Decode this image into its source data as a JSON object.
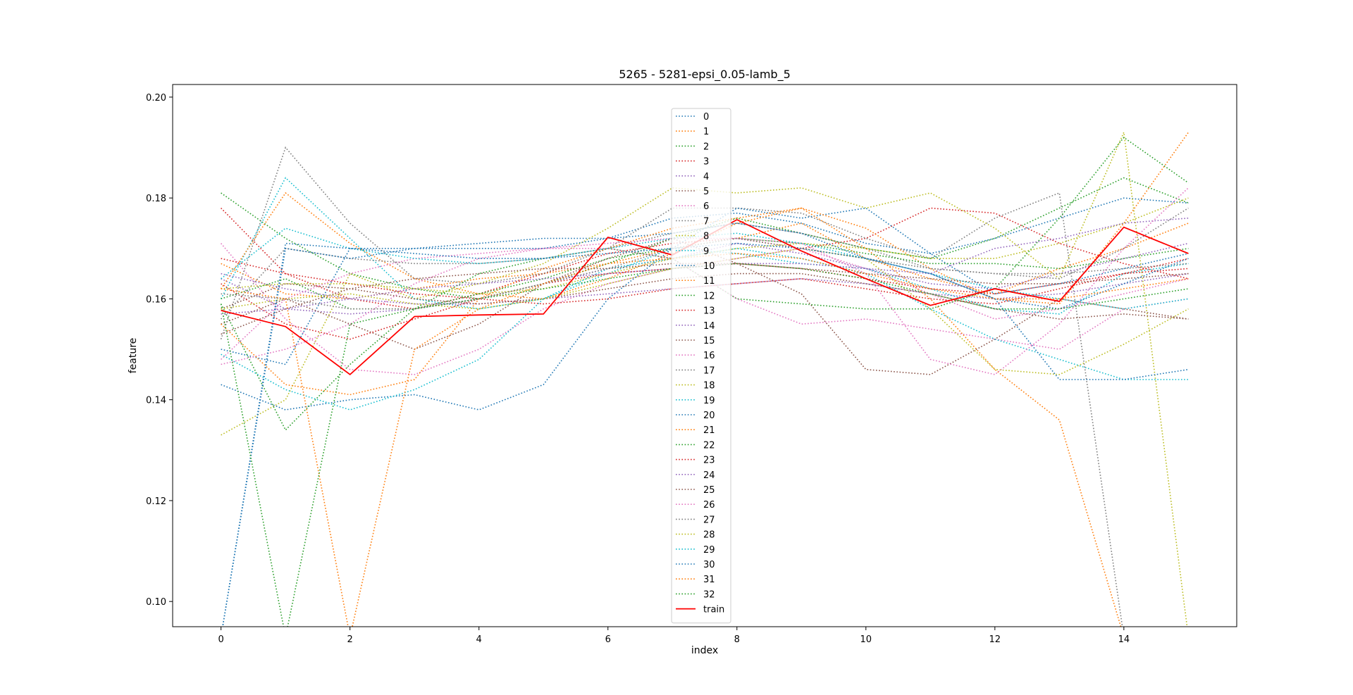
{
  "chart_data": {
    "type": "line",
    "title": "5265 - 5281-epsi_0.05-lamb_5",
    "xlabel": "index",
    "ylabel": "feature",
    "xlim": [
      -0.75,
      15.75
    ],
    "ylim": [
      0.095,
      0.2025
    ],
    "xticks": [
      "0",
      "2",
      "4",
      "6",
      "8",
      "10",
      "12",
      "14"
    ],
    "xtick_values": [
      0,
      2,
      4,
      6,
      8,
      10,
      12,
      14
    ],
    "yticks": [
      "0.10",
      "0.12",
      "0.14",
      "0.16",
      "0.18",
      "0.20"
    ],
    "ytick_values": [
      0.1,
      0.12,
      0.14,
      0.16,
      0.18,
      0.2
    ],
    "grid": false,
    "legend_position": "top-center",
    "x": [
      0,
      1,
      2,
      3,
      4,
      5,
      6,
      7,
      8,
      9,
      10,
      11,
      12,
      13,
      14,
      15
    ],
    "series": [
      {
        "name": "0",
        "color": "#1f77b4",
        "style": "dotted",
        "values": [
          0.15,
          0.147,
          0.17,
          0.17,
          0.171,
          0.172,
          0.172,
          0.176,
          0.177,
          0.175,
          0.171,
          0.169,
          0.172,
          0.176,
          0.18,
          0.179
        ]
      },
      {
        "name": "1",
        "color": "#ff7f0e",
        "style": "dotted",
        "values": [
          0.167,
          0.161,
          0.16,
          0.162,
          0.164,
          0.165,
          0.167,
          0.17,
          0.172,
          0.175,
          0.168,
          0.164,
          0.161,
          0.166,
          0.17,
          0.175
        ]
      },
      {
        "name": "2",
        "color": "#2ca02c",
        "style": "dotted",
        "values": [
          0.181,
          0.172,
          0.165,
          0.162,
          0.16,
          0.163,
          0.167,
          0.172,
          0.176,
          0.173,
          0.17,
          0.168,
          0.172,
          0.178,
          0.184,
          0.179
        ]
      },
      {
        "name": "3",
        "color": "#d62728",
        "style": "dotted",
        "values": [
          0.178,
          0.165,
          0.16,
          0.158,
          0.161,
          0.165,
          0.169,
          0.171,
          0.172,
          0.17,
          0.172,
          0.178,
          0.177,
          0.171,
          0.167,
          0.164
        ]
      },
      {
        "name": "4",
        "color": "#9467bd",
        "style": "dotted",
        "values": [
          0.164,
          0.158,
          0.157,
          0.158,
          0.16,
          0.163,
          0.166,
          0.168,
          0.171,
          0.169,
          0.166,
          0.163,
          0.162,
          0.165,
          0.168,
          0.171
        ]
      },
      {
        "name": "5",
        "color": "#8c564b",
        "style": "dotted",
        "values": [
          0.155,
          0.16,
          0.155,
          0.15,
          0.155,
          0.163,
          0.168,
          0.172,
          0.167,
          0.161,
          0.146,
          0.145,
          0.152,
          0.16,
          0.158,
          0.156
        ]
      },
      {
        "name": "6",
        "color": "#e377c2",
        "style": "dotted",
        "values": [
          0.171,
          0.156,
          0.146,
          0.145,
          0.15,
          0.158,
          0.163,
          0.166,
          0.168,
          0.17,
          0.166,
          0.161,
          0.156,
          0.158,
          0.161,
          0.164
        ]
      },
      {
        "name": "7",
        "color": "#7f7f7f",
        "style": "dotted",
        "values": [
          0.152,
          0.19,
          0.175,
          0.164,
          0.163,
          0.165,
          0.17,
          0.178,
          0.178,
          0.177,
          0.172,
          0.168,
          0.176,
          0.181,
          0.093,
          0.093
        ]
      },
      {
        "name": "8",
        "color": "#bcbd22",
        "style": "dotted",
        "values": [
          0.133,
          0.14,
          0.165,
          0.16,
          0.163,
          0.167,
          0.174,
          0.182,
          0.181,
          0.182,
          0.178,
          0.181,
          0.174,
          0.164,
          0.193,
          0.093
        ]
      },
      {
        "name": "9",
        "color": "#17becf",
        "style": "dotted",
        "values": [
          0.16,
          0.184,
          0.172,
          0.16,
          0.158,
          0.16,
          0.165,
          0.17,
          0.169,
          0.167,
          0.166,
          0.162,
          0.158,
          0.157,
          0.165,
          0.167
        ]
      },
      {
        "name": "10",
        "color": "#1f77b4",
        "style": "dotted",
        "values": [
          0.143,
          0.138,
          0.14,
          0.141,
          0.138,
          0.143,
          0.16,
          0.17,
          0.178,
          0.176,
          0.178,
          0.169,
          0.161,
          0.163,
          0.166,
          0.169
        ]
      },
      {
        "name": "11",
        "color": "#ff7f0e",
        "style": "dotted",
        "values": [
          0.162,
          0.181,
          0.171,
          0.164,
          0.161,
          0.16,
          0.164,
          0.169,
          0.175,
          0.178,
          0.174,
          0.166,
          0.16,
          0.159,
          0.175,
          0.193
        ]
      },
      {
        "name": "12",
        "color": "#2ca02c",
        "style": "dotted",
        "values": [
          0.159,
          0.134,
          0.147,
          0.158,
          0.165,
          0.168,
          0.17,
          0.168,
          0.16,
          0.159,
          0.158,
          0.158,
          0.162,
          0.176,
          0.192,
          0.183
        ]
      },
      {
        "name": "13",
        "color": "#d62728",
        "style": "dotted",
        "values": [
          0.168,
          0.165,
          0.163,
          0.161,
          0.16,
          0.159,
          0.16,
          0.162,
          0.163,
          0.164,
          0.162,
          0.16,
          0.159,
          0.162,
          0.165,
          0.168
        ]
      },
      {
        "name": "14",
        "color": "#9467bd",
        "style": "dotted",
        "values": [
          0.165,
          0.162,
          0.16,
          0.159,
          0.159,
          0.16,
          0.161,
          0.162,
          0.163,
          0.164,
          0.163,
          0.161,
          0.16,
          0.161,
          0.163,
          0.165
        ]
      },
      {
        "name": "15",
        "color": "#8c564b",
        "style": "dotted",
        "values": [
          0.158,
          0.163,
          0.162,
          0.16,
          0.159,
          0.16,
          0.162,
          0.164,
          0.165,
          0.165,
          0.163,
          0.161,
          0.158,
          0.156,
          0.157,
          0.156
        ]
      },
      {
        "name": "16",
        "color": "#e377c2",
        "style": "dotted",
        "values": [
          0.147,
          0.15,
          0.155,
          0.163,
          0.168,
          0.17,
          0.17,
          0.168,
          0.16,
          0.155,
          0.156,
          0.154,
          0.152,
          0.15,
          0.158,
          0.16
        ]
      },
      {
        "name": "17",
        "color": "#7f7f7f",
        "style": "dotted",
        "values": [
          0.156,
          0.17,
          0.168,
          0.167,
          0.167,
          0.168,
          0.17,
          0.173,
          0.175,
          0.173,
          0.17,
          0.166,
          0.165,
          0.164,
          0.17,
          0.178
        ]
      },
      {
        "name": "18",
        "color": "#bcbd22",
        "style": "dotted",
        "values": [
          0.162,
          0.163,
          0.163,
          0.162,
          0.161,
          0.162,
          0.165,
          0.168,
          0.17,
          0.171,
          0.17,
          0.168,
          0.168,
          0.171,
          0.175,
          0.18
        ]
      },
      {
        "name": "19",
        "color": "#17becf",
        "style": "dotted",
        "values": [
          0.149,
          0.142,
          0.138,
          0.142,
          0.148,
          0.16,
          0.166,
          0.168,
          0.17,
          0.168,
          0.165,
          0.158,
          0.152,
          0.148,
          0.144,
          0.144
        ]
      },
      {
        "name": "20",
        "color": "#1f77b4",
        "style": "dotted",
        "values": [
          0.093,
          0.17,
          0.168,
          0.17,
          0.17,
          0.17,
          0.172,
          0.173,
          0.175,
          0.173,
          0.168,
          0.165,
          0.16,
          0.144,
          0.144,
          0.146
        ]
      },
      {
        "name": "21",
        "color": "#ff7f0e",
        "style": "dotted",
        "values": [
          0.155,
          0.143,
          0.141,
          0.144,
          0.16,
          0.166,
          0.17,
          0.174,
          0.176,
          0.178,
          0.17,
          0.16,
          0.146,
          0.136,
          0.093,
          0.093
        ]
      },
      {
        "name": "22",
        "color": "#2ca02c",
        "style": "dotted",
        "values": [
          0.16,
          0.164,
          0.158,
          0.158,
          0.161,
          0.164,
          0.168,
          0.17,
          0.172,
          0.171,
          0.169,
          0.167,
          0.167,
          0.166,
          0.168,
          0.17
        ]
      },
      {
        "name": "23",
        "color": "#d62728",
        "style": "dotted",
        "values": [
          0.163,
          0.155,
          0.152,
          0.156,
          0.16,
          0.163,
          0.165,
          0.166,
          0.167,
          0.166,
          0.164,
          0.162,
          0.161,
          0.163,
          0.165,
          0.166
        ]
      },
      {
        "name": "24",
        "color": "#9467bd",
        "style": "dotted",
        "values": [
          0.157,
          0.158,
          0.16,
          0.162,
          0.163,
          0.164,
          0.165,
          0.166,
          0.167,
          0.167,
          0.166,
          0.165,
          0.17,
          0.172,
          0.175,
          0.176
        ]
      },
      {
        "name": "25",
        "color": "#8c564b",
        "style": "dotted",
        "values": [
          0.153,
          0.158,
          0.162,
          0.164,
          0.165,
          0.166,
          0.166,
          0.167,
          0.167,
          0.166,
          0.165,
          0.164,
          0.163,
          0.163,
          0.164,
          0.165
        ]
      },
      {
        "name": "26",
        "color": "#e377c2",
        "style": "dotted",
        "values": [
          0.148,
          0.16,
          0.165,
          0.168,
          0.169,
          0.17,
          0.171,
          0.172,
          0.172,
          0.171,
          0.165,
          0.148,
          0.145,
          0.155,
          0.17,
          0.182
        ]
      },
      {
        "name": "27",
        "color": "#7f7f7f",
        "style": "dotted",
        "values": [
          0.161,
          0.16,
          0.158,
          0.158,
          0.16,
          0.163,
          0.166,
          0.17,
          0.172,
          0.17,
          0.168,
          0.166,
          0.165,
          0.165,
          0.166,
          0.167
        ]
      },
      {
        "name": "28",
        "color": "#bcbd22",
        "style": "dotted",
        "values": [
          0.158,
          0.16,
          0.161,
          0.159,
          0.158,
          0.16,
          0.163,
          0.166,
          0.168,
          0.17,
          0.168,
          0.158,
          0.146,
          0.145,
          0.151,
          0.158
        ]
      },
      {
        "name": "29",
        "color": "#17becf",
        "style": "dotted",
        "values": [
          0.164,
          0.174,
          0.17,
          0.168,
          0.167,
          0.168,
          0.17,
          0.172,
          0.173,
          0.171,
          0.168,
          0.165,
          0.162,
          0.16,
          0.158,
          0.16
        ]
      },
      {
        "name": "30",
        "color": "#1f77b4",
        "style": "dotted",
        "values": [
          0.093,
          0.171,
          0.17,
          0.169,
          0.168,
          0.168,
          0.169,
          0.17,
          0.171,
          0.17,
          0.168,
          0.165,
          0.16,
          0.158,
          0.163,
          0.168
        ]
      },
      {
        "name": "31",
        "color": "#ff7f0e",
        "style": "dotted",
        "values": [
          0.162,
          0.16,
          0.093,
          0.15,
          0.158,
          0.163,
          0.167,
          0.168,
          0.169,
          0.168,
          0.165,
          0.162,
          0.16,
          0.16,
          0.162,
          0.164
        ]
      },
      {
        "name": "32",
        "color": "#2ca02c",
        "style": "dotted",
        "values": [
          0.159,
          0.093,
          0.155,
          0.158,
          0.16,
          0.162,
          0.164,
          0.166,
          0.167,
          0.166,
          0.164,
          0.161,
          0.158,
          0.158,
          0.16,
          0.162
        ]
      },
      {
        "name": "train",
        "color": "#ff0000",
        "style": "solid",
        "values": [
          0.1577,
          0.1545,
          0.145,
          0.1565,
          0.1568,
          0.157,
          0.1722,
          0.1687,
          0.1757,
          0.1695,
          0.164,
          0.1587,
          0.162,
          0.1595,
          0.1742,
          0.169
        ]
      }
    ]
  }
}
